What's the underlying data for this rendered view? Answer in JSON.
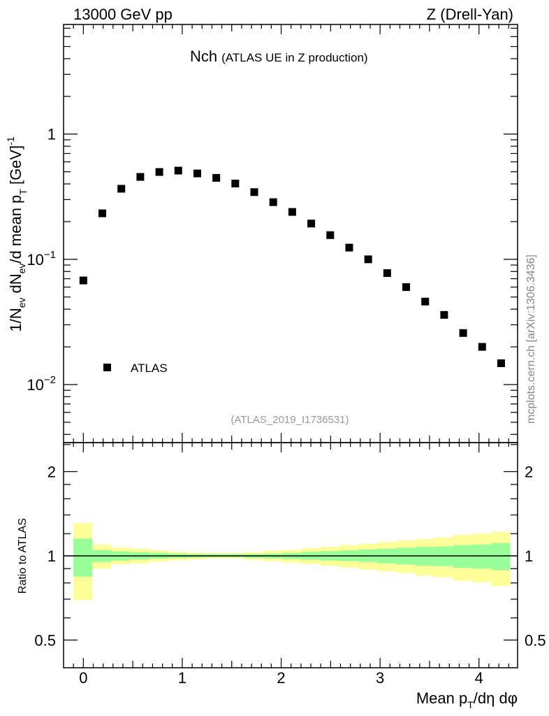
{
  "chart_data": [
    {
      "type": "scatter",
      "title": "Nch",
      "subtitle": "(ATLAS UE in Z production)",
      "top_left": "13000 GeV pp",
      "top_right": "Z (Drell-Yan)",
      "analysis_id": "(ATLAS_2019_I1736531)",
      "side_label": "mcplots.cern.ch [arXiv:1306.3436]",
      "ylabel_parts": [
        "1/N",
        "ev",
        " dN",
        "ev",
        "/d mean p",
        "T",
        " [GeV]",
        "-1"
      ],
      "yscale": "log",
      "ylim": [
        0.00344,
        7.5
      ],
      "xlim": [
        -0.2,
        4.39
      ],
      "ytick_labels": [
        {
          "value": 1,
          "base": "1",
          "exp": ""
        },
        {
          "value": 0.1,
          "base": "10",
          "exp": "−1"
        },
        {
          "value": 0.01,
          "base": "10",
          "exp": "−2"
        }
      ],
      "legend": {
        "position": "bottom-left",
        "entries": [
          "ATLAS"
        ]
      },
      "series": [
        {
          "name": "ATLAS",
          "marker": "square",
          "color": "#000000",
          "x": [
            0.0,
            0.192,
            0.384,
            0.576,
            0.768,
            0.96,
            1.152,
            1.344,
            1.536,
            1.728,
            1.92,
            2.112,
            2.304,
            2.496,
            2.688,
            2.88,
            3.072,
            3.264,
            3.456,
            3.648,
            3.84,
            4.032,
            4.224
          ],
          "y": [
            0.0678,
            0.233,
            0.366,
            0.455,
            0.498,
            0.511,
            0.485,
            0.447,
            0.403,
            0.344,
            0.286,
            0.239,
            0.193,
            0.156,
            0.124,
            0.1,
            0.0776,
            0.06,
            0.046,
            0.036,
            0.0258,
            0.02,
            0.0148
          ]
        }
      ]
    },
    {
      "type": "area",
      "ylabel": "Ratio to ATLAS",
      "xlabel_parts": [
        "Mean p",
        "T",
        "/dη dφ"
      ],
      "yscale": "log",
      "ylim": [
        0.398,
        2.54
      ],
      "xlim": [
        -0.2,
        4.39
      ],
      "ytick_labels": [
        "2",
        "1",
        "0.5"
      ],
      "ytick_values": [
        2,
        1,
        0.5
      ],
      "xtick_labels": [
        "0",
        "1",
        "2",
        "3",
        "4"
      ],
      "xtick_values": [
        0,
        1,
        2,
        3,
        4
      ],
      "reference_line": 1,
      "colors": {
        "outer": "#ffff99",
        "inner": "#99ff99"
      },
      "bin_edges_start": -0.1,
      "bin_width": 0.192,
      "outer_upper": [
        1.308,
        1.096,
        1.071,
        1.061,
        1.047,
        1.035,
        1.027,
        1.023,
        1.023,
        1.031,
        1.043,
        1.049,
        1.065,
        1.078,
        1.092,
        1.105,
        1.12,
        1.135,
        1.148,
        1.164,
        1.188,
        1.2,
        1.218
      ],
      "inner_upper": [
        1.152,
        1.049,
        1.037,
        1.031,
        1.025,
        1.019,
        1.015,
        1.013,
        1.013,
        1.015,
        1.019,
        1.025,
        1.033,
        1.039,
        1.045,
        1.053,
        1.061,
        1.069,
        1.076,
        1.08,
        1.092,
        1.098,
        1.111
      ],
      "inner_lower": [
        0.843,
        0.951,
        0.962,
        0.97,
        0.977,
        0.983,
        0.987,
        0.989,
        0.989,
        0.983,
        0.979,
        0.973,
        0.968,
        0.962,
        0.957,
        0.951,
        0.94,
        0.932,
        0.923,
        0.919,
        0.905,
        0.9,
        0.889
      ],
      "outer_lower": [
        0.695,
        0.9,
        0.932,
        0.94,
        0.953,
        0.964,
        0.972,
        0.979,
        0.979,
        0.968,
        0.957,
        0.946,
        0.935,
        0.921,
        0.909,
        0.893,
        0.88,
        0.869,
        0.85,
        0.838,
        0.815,
        0.805,
        0.781
      ]
    }
  ]
}
